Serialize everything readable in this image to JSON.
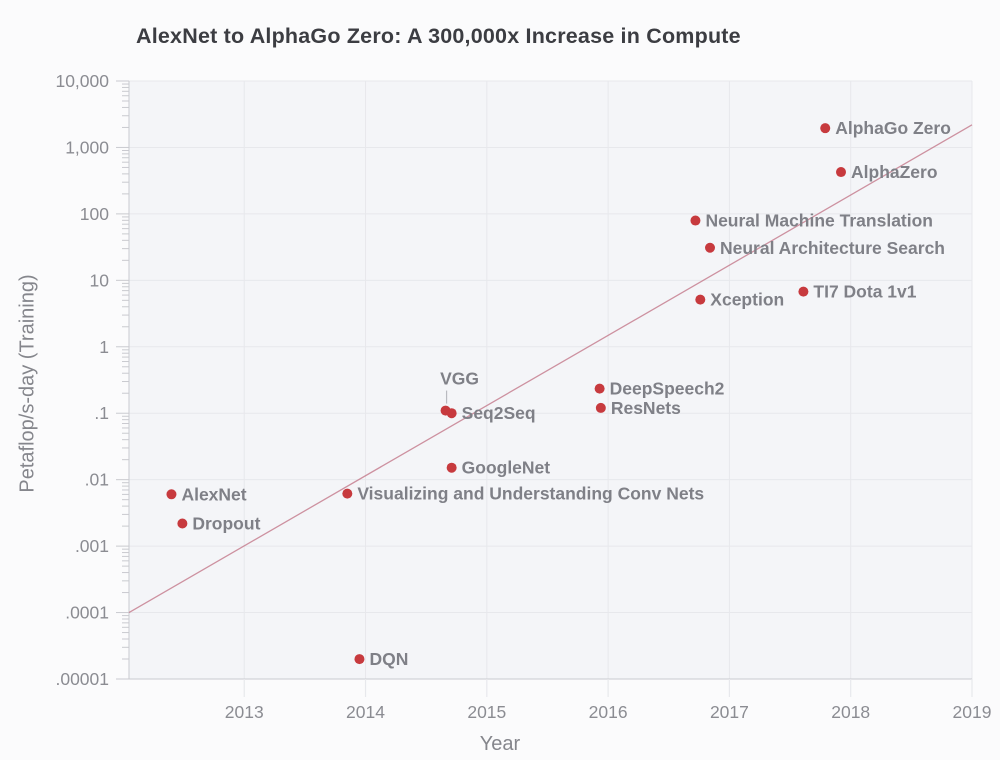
{
  "chart_data": {
    "type": "scatter",
    "title": "AlexNet to AlphaGo Zero: A 300,000x Increase in Compute",
    "xlabel": "Year",
    "ylabel": "Petaflop/s-day (Training)",
    "y_scale": "log10",
    "xlim": [
      2012.05,
      2019
    ],
    "ylim_exp": [
      -5,
      4
    ],
    "grid": true,
    "x_ticks": [
      {
        "label": "2013",
        "value": 2013
      },
      {
        "label": "2014",
        "value": 2014
      },
      {
        "label": "2015",
        "value": 2015
      },
      {
        "label": "2016",
        "value": 2016
      },
      {
        "label": "2017",
        "value": 2017
      },
      {
        "label": "2018",
        "value": 2018
      },
      {
        "label": "2019",
        "value": 2019
      }
    ],
    "y_ticks": [
      {
        "label": "10,000",
        "exp": 4
      },
      {
        "label": "1,000",
        "exp": 3
      },
      {
        "label": "100",
        "exp": 2
      },
      {
        "label": "10",
        "exp": 1
      },
      {
        "label": "1",
        "exp": 0
      },
      {
        "label": ".1",
        "exp": -1
      },
      {
        "label": ".01",
        "exp": -2
      },
      {
        "label": ".001",
        "exp": -3
      },
      {
        "label": ".0001",
        "exp": -4
      },
      {
        "label": ".00001",
        "exp": -5
      }
    ],
    "points": [
      {
        "label": "AlexNet",
        "year": 2012.4,
        "petaflops_day": 0.0059,
        "log10": -2.22
      },
      {
        "label": "Dropout",
        "year": 2012.49,
        "petaflops_day": 0.0022,
        "log10": -2.66
      },
      {
        "label": "Visualizing and Understanding Conv Nets",
        "year": 2013.85,
        "petaflops_day": 0.0061,
        "log10": -2.21
      },
      {
        "label": "DQN",
        "year": 2013.95,
        "petaflops_day": 2e-05,
        "log10": -4.7
      },
      {
        "label": "VGG",
        "year": 2014.66,
        "petaflops_day": 0.11,
        "log10": -0.96,
        "label_placement": "above"
      },
      {
        "label": "Seq2Seq",
        "year": 2014.71,
        "petaflops_day": 0.1,
        "log10": -1.0
      },
      {
        "label": "GoogleNet",
        "year": 2014.71,
        "petaflops_day": 0.015,
        "log10": -1.82
      },
      {
        "label": "DeepSpeech2",
        "year": 2015.93,
        "petaflops_day": 0.235,
        "log10": -0.63
      },
      {
        "label": "ResNets",
        "year": 2015.94,
        "petaflops_day": 0.12,
        "log10": -0.92
      },
      {
        "label": "Neural Machine Translation",
        "year": 2016.72,
        "petaflops_day": 80,
        "log10": 1.9
      },
      {
        "label": "Neural Architecture Search",
        "year": 2016.84,
        "petaflops_day": 31,
        "log10": 1.49
      },
      {
        "label": "Xception",
        "year": 2016.76,
        "petaflops_day": 5.2,
        "log10": 0.71
      },
      {
        "label": "TI7 Dota 1v1",
        "year": 2017.61,
        "petaflops_day": 6.8,
        "log10": 0.83
      },
      {
        "label": "AlphaGo Zero",
        "year": 2017.79,
        "petaflops_day": 1950,
        "log10": 3.29
      },
      {
        "label": "AlphaZero",
        "year": 2017.92,
        "petaflops_day": 425,
        "log10": 2.63
      }
    ],
    "trend_line": {
      "x1": 2012.05,
      "exp1": -4.0,
      "x2": 2019.0,
      "exp2": 3.34
    },
    "legend": "none",
    "colors": {
      "dot": "#c73a3e",
      "trend": "#c4798b",
      "point_label": "#7f8087",
      "tick_label": "#8b8c92",
      "title": "#3c3d42",
      "axis_title": "#85868c",
      "grid": "#e7e8ec",
      "axis": "#c9cacf",
      "plot_bg": "#f4f5f8",
      "page_bg": "#fbfbfc"
    }
  }
}
